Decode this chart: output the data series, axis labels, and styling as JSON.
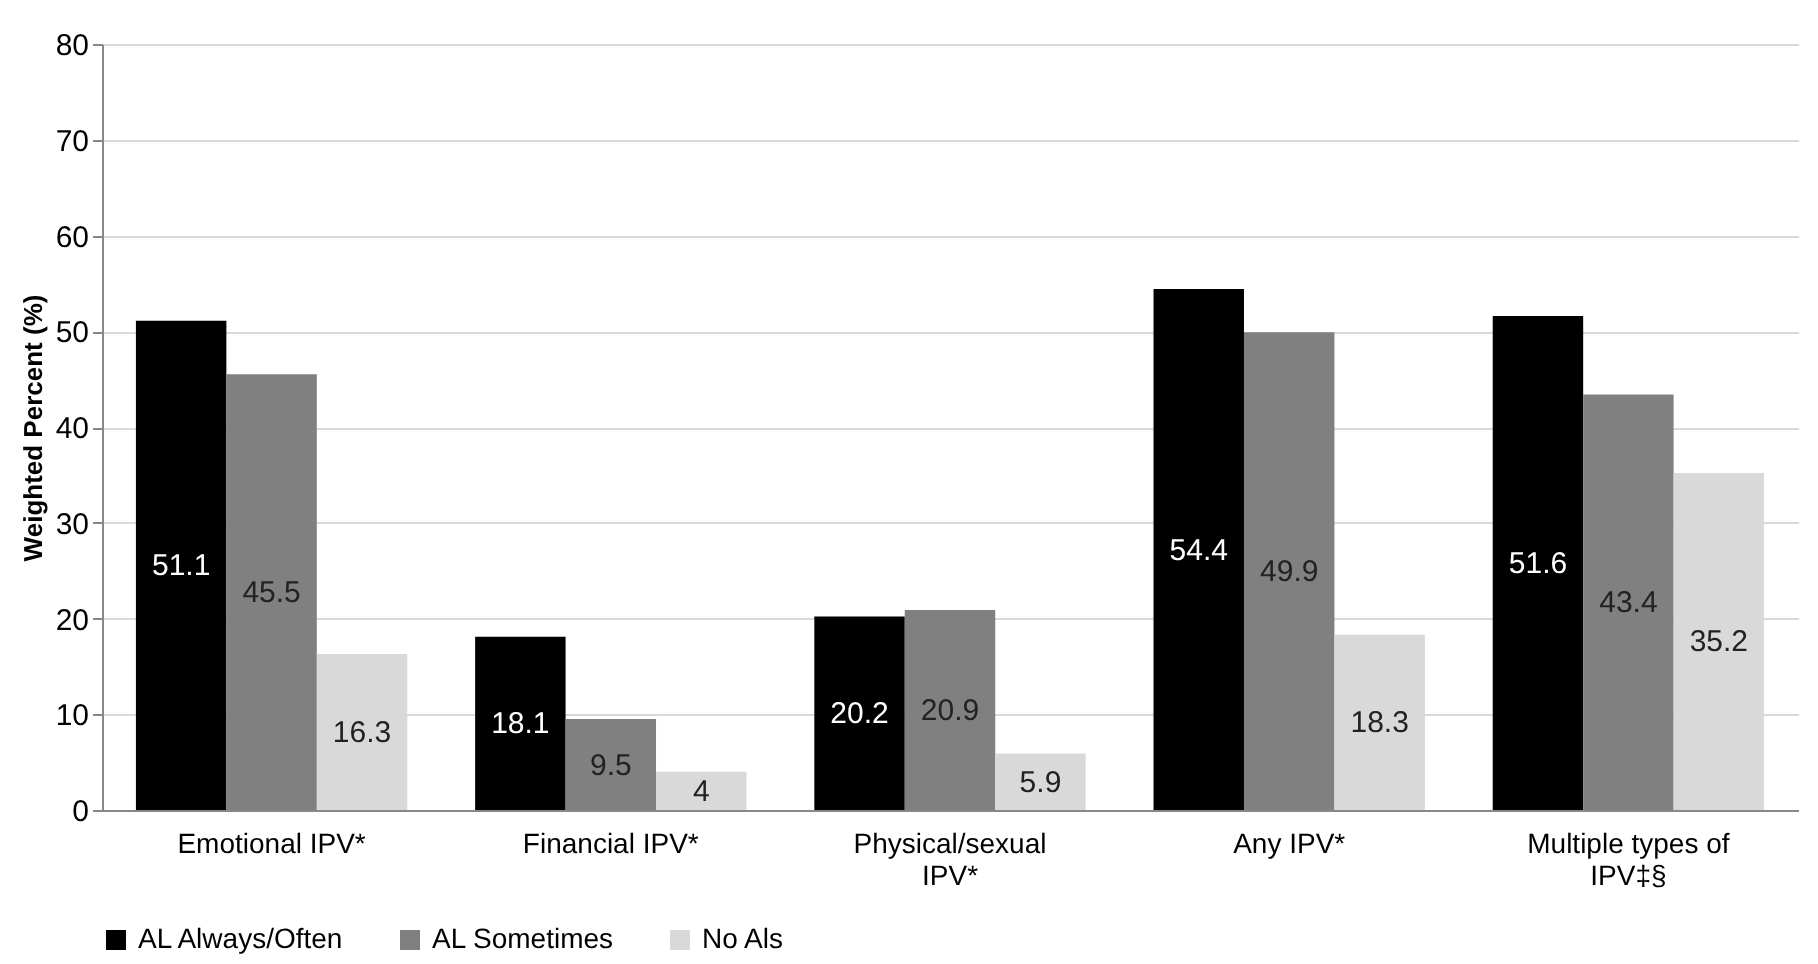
{
  "chart_data": {
    "type": "bar",
    "ylabel": "Weighted Percent (%)",
    "categories": [
      "Emotional IPV*",
      "Financial IPV*",
      "Physical/sexual IPV*",
      "Any IPV*",
      "Multiple types of IPV‡§"
    ],
    "series": [
      {
        "name": "AL Always/Often",
        "color": "#000000",
        "values": [
          51.1,
          18.1,
          20.2,
          54.4,
          51.6
        ]
      },
      {
        "name": "AL Sometimes",
        "color": "#808080",
        "values": [
          45.5,
          9.5,
          20.9,
          49.9,
          43.4
        ]
      },
      {
        "name": "No Als",
        "color": "#d9d9d9",
        "values": [
          16.3,
          4,
          5.9,
          18.3,
          35.2
        ]
      }
    ],
    "ylim": [
      0,
      80
    ],
    "yticks": [
      0,
      10,
      20,
      30,
      40,
      50,
      60,
      70,
      80
    ],
    "grid": "y",
    "legend": "bottom",
    "data_labels": true
  }
}
